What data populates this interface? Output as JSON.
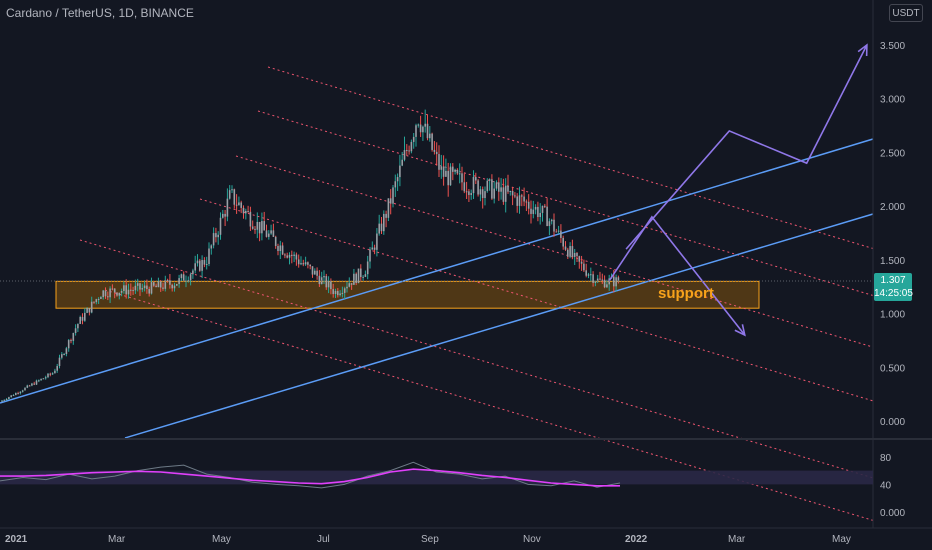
{
  "header": {
    "title": "Cardano / TetherUS, 1D, BINANCE",
    "currency": "USDT"
  },
  "last_price": {
    "value": "1.307",
    "countdown": "14:25:05"
  },
  "annotations": {
    "zone_label": "support"
  },
  "colors": {
    "background": "#131722",
    "up_candle": "#26a69a",
    "down_candle": "#ef5350",
    "candle_body": "#9aa0a6",
    "trend_line": "#5b9cf6",
    "channel_line": "#f05670",
    "zone_border": "#f7a21b",
    "zone_fill": "#5a3d14",
    "arrow": "#8f77e8",
    "rsi_line": "#6d7a86",
    "rsi_ma": "#e040fb"
  },
  "chart_data": [
    {
      "type": "candlestick",
      "title": "Cardano / TetherUS, 1D, BINANCE",
      "x_ticks": [
        "2021",
        "Mar",
        "May",
        "Jul",
        "Sep",
        "Nov",
        "2022",
        "Mar",
        "May"
      ],
      "y_ticks": [
        "0.000",
        "0.500",
        "1.000",
        "1.500",
        "2.000",
        "2.500",
        "3.000",
        "3.500"
      ],
      "ylim": [
        -0.1,
        3.9
      ],
      "grid": false,
      "series": [
        {
          "x": [
            "2021-01-01",
            "2021-01-15",
            "2021-02-01",
            "2021-02-15",
            "2021-03-01",
            "2021-03-15",
            "2021-04-01",
            "2021-04-15",
            "2021-05-01",
            "2021-05-15",
            "2021-06-01",
            "2021-06-15",
            "2021-07-01",
            "2021-07-15",
            "2021-08-01",
            "2021-08-15",
            "2021-09-01",
            "2021-09-15",
            "2021-10-01",
            "2021-10-15",
            "2021-11-01",
            "2021-11-15",
            "2021-12-01",
            "2021-12-15"
          ],
          "values": [
            0.18,
            0.3,
            0.45,
            0.9,
            1.2,
            1.22,
            1.24,
            1.3,
            1.5,
            2.1,
            1.8,
            1.6,
            1.4,
            1.2,
            1.4,
            2.0,
            2.85,
            2.3,
            2.2,
            2.15,
            2.05,
            1.9,
            1.5,
            1.3
          ]
        }
      ],
      "support_zone": {
        "low": 1.05,
        "high": 1.3,
        "label": "support"
      },
      "projection_up": {
        "x": [
          "2021-12-31",
          "2022-03-01",
          "2022-04-15",
          "2022-05-20"
        ],
        "values": [
          1.6,
          2.7,
          2.4,
          3.5
        ]
      },
      "projection_down": {
        "x": [
          "2021-12-21",
          "2022-01-15",
          "2022-03-10"
        ],
        "values": [
          1.3,
          1.9,
          0.8
        ]
      }
    },
    {
      "type": "line",
      "y_ticks": [
        "80",
        "40",
        "0.000"
      ],
      "ylim": [
        0,
        100
      ],
      "band": [
        40,
        60
      ],
      "series": [
        {
          "values": [
            45,
            50,
            47,
            55,
            48,
            52,
            60,
            65,
            68,
            55,
            50,
            43,
            40,
            38,
            35,
            40,
            52,
            60,
            72,
            58,
            55,
            48,
            52,
            40,
            38,
            45,
            36,
            42
          ]
        },
        {
          "values": [
            52,
            52,
            53,
            55,
            57,
            58,
            59,
            58,
            55,
            52,
            49,
            46,
            44,
            42,
            41,
            44,
            50,
            58,
            62,
            60,
            57,
            53,
            50,
            46,
            42,
            40,
            38,
            38
          ]
        }
      ]
    }
  ]
}
